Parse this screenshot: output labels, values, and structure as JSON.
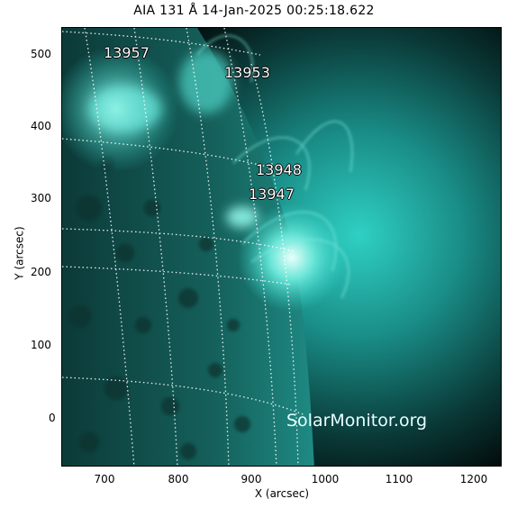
{
  "title": "AIA 131 Å 14-Jan-2025 00:25:18.622",
  "x_axis": {
    "label": "X (arcsec)",
    "ticks": [
      "700",
      "800",
      "900",
      "1000",
      "1100",
      "1200"
    ]
  },
  "y_axis": {
    "label": "Y (arcsec)",
    "ticks": [
      "500",
      "400",
      "300",
      "200",
      "100",
      "0"
    ]
  },
  "active_regions": [
    "13957",
    "13953",
    "13948",
    "13947"
  ],
  "watermark": "SolarMonitor.org",
  "colors": {
    "teal": "#2fd0c4",
    "dark_teal": "#0b3b3b",
    "bright": "#cffff7",
    "background": "#000000"
  }
}
